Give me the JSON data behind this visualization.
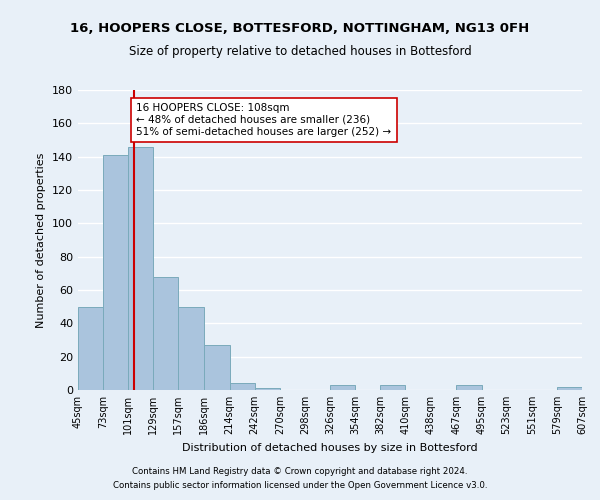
{
  "title": "16, HOOPERS CLOSE, BOTTESFORD, NOTTINGHAM, NG13 0FH",
  "subtitle": "Size of property relative to detached houses in Bottesford",
  "xlabel": "Distribution of detached houses by size in Bottesford",
  "ylabel": "Number of detached properties",
  "bar_edges": [
    45,
    73,
    101,
    129,
    157,
    186,
    214,
    242,
    270,
    298,
    326,
    354,
    382,
    410,
    438,
    467,
    495,
    523,
    551,
    579,
    607
  ],
  "bar_heights": [
    50,
    141,
    146,
    68,
    50,
    27,
    4,
    1,
    0,
    0,
    3,
    0,
    3,
    0,
    0,
    3,
    0,
    0,
    0,
    2
  ],
  "bar_color": "#aac4dd",
  "bar_edge_color": "#7aaabb",
  "property_line_x": 108,
  "property_line_color": "#cc0000",
  "annotation_text": "16 HOOPERS CLOSE: 108sqm\n← 48% of detached houses are smaller (236)\n51% of semi-detached houses are larger (252) →",
  "annotation_box_color": "#ffffff",
  "annotation_box_edge": "#cc0000",
  "ylim": [
    0,
    180
  ],
  "yticks": [
    0,
    20,
    40,
    60,
    80,
    100,
    120,
    140,
    160,
    180
  ],
  "tick_labels": [
    "45sqm",
    "73sqm",
    "101sqm",
    "129sqm",
    "157sqm",
    "186sqm",
    "214sqm",
    "242sqm",
    "270sqm",
    "298sqm",
    "326sqm",
    "354sqm",
    "382sqm",
    "410sqm",
    "438sqm",
    "467sqm",
    "495sqm",
    "523sqm",
    "551sqm",
    "579sqm",
    "607sqm"
  ],
  "bg_color": "#e8f0f8",
  "plot_bg_color": "#e8f0f8",
  "grid_color": "#ffffff",
  "footer1": "Contains HM Land Registry data © Crown copyright and database right 2024.",
  "footer2": "Contains public sector information licensed under the Open Government Licence v3.0."
}
